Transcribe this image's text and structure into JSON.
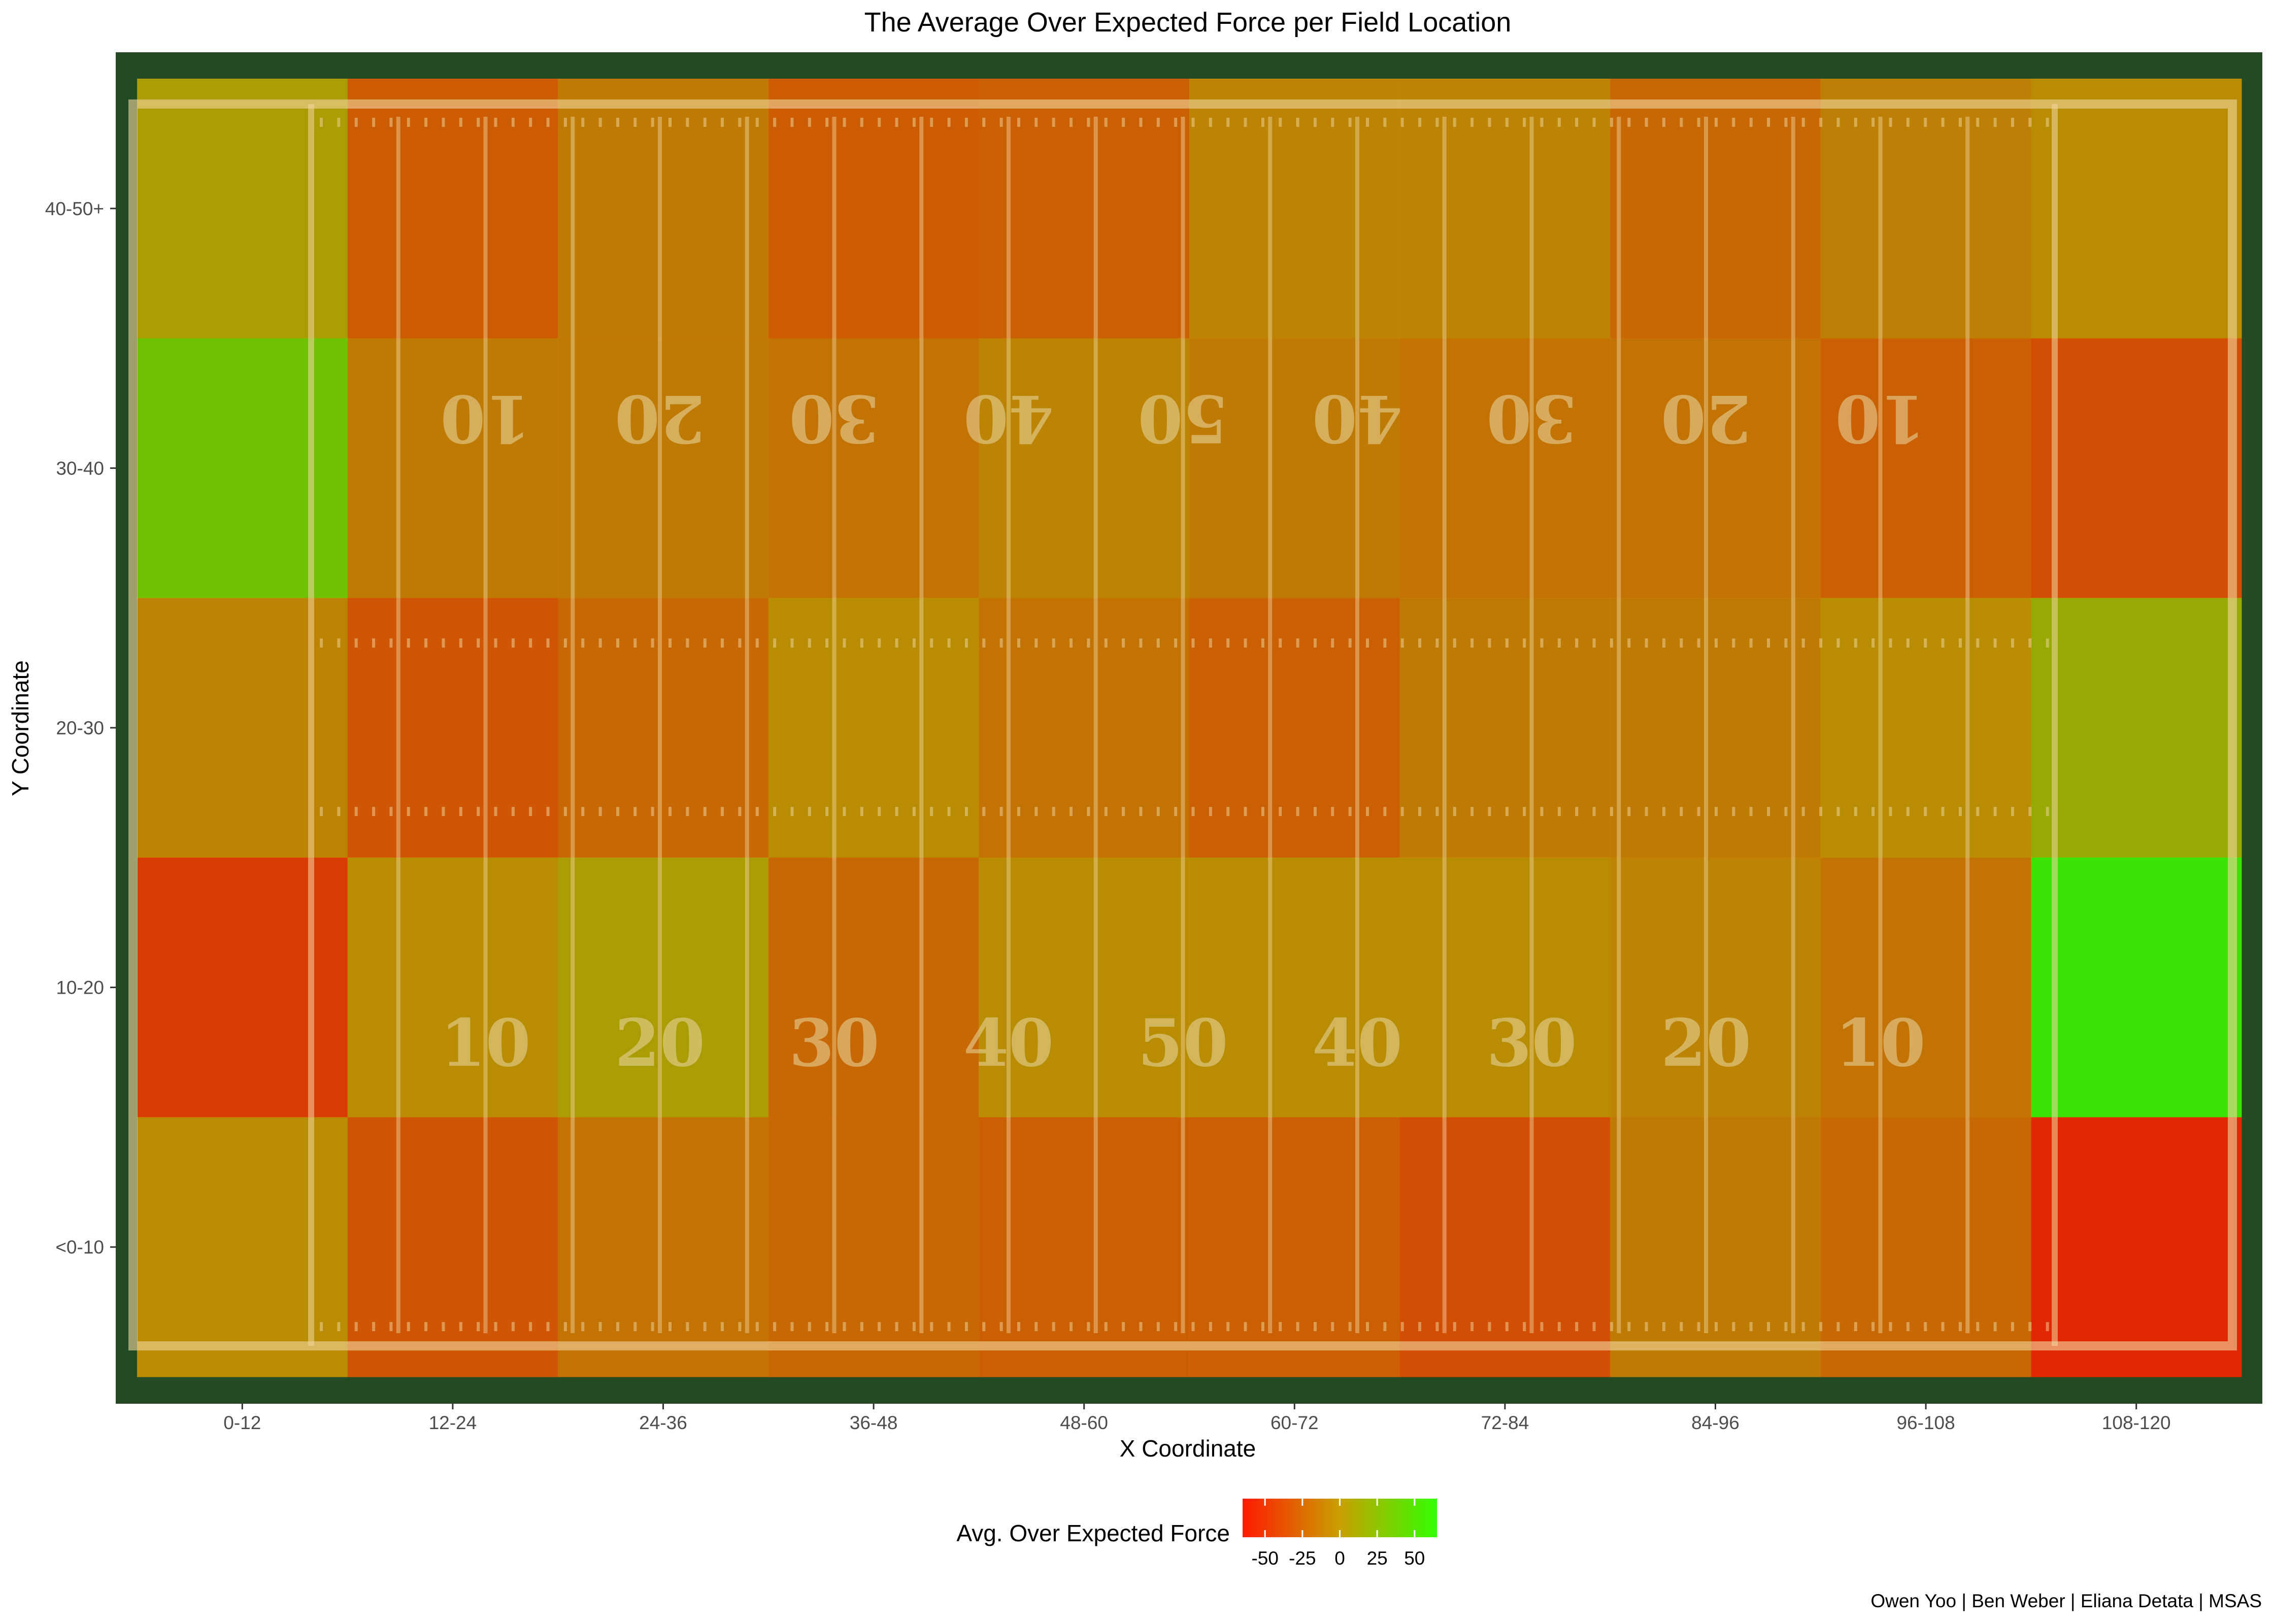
{
  "chart_data": {
    "type": "heatmap",
    "title": "The Average Over Expected Force per Field Location",
    "xlabel": "X Coordinate",
    "ylabel": "Y Coordinate",
    "x_categories": [
      "0-12",
      "12-24",
      "24-36",
      "36-48",
      "48-60",
      "60-72",
      "72-84",
      "84-96",
      "96-108",
      "108-120"
    ],
    "y_categories": [
      "<0-10",
      "10-20",
      "20-30",
      "30-40",
      "40-50+"
    ],
    "values_by_row_top_to_bottom": {
      "40-50+": [
        5,
        -32,
        -15,
        -32,
        -30,
        -10,
        -10,
        -25,
        -12,
        -5
      ],
      "30-40": [
        35,
        -15,
        -15,
        -20,
        -10,
        -15,
        -20,
        -20,
        -30,
        -40
      ],
      "20-30": [
        -10,
        -35,
        -25,
        -5,
        -20,
        -30,
        -15,
        -15,
        -5,
        15
      ],
      "10-20": [
        -50,
        -5,
        5,
        -25,
        -5,
        -5,
        -5,
        -10,
        -20,
        60
      ],
      "<0-10": [
        -5,
        -35,
        -20,
        -25,
        -30,
        -30,
        -40,
        -15,
        -25,
        -60
      ]
    },
    "legend": {
      "title": "Avg. Over Expected Force",
      "ticks": [
        -50,
        -25,
        0,
        25,
        50
      ],
      "range": [
        -65,
        65
      ],
      "colors": [
        "#ff1a00",
        "#c9a000",
        "#33ff00"
      ],
      "position": "bottom"
    },
    "background": "american football field image",
    "field_numbers": {
      "top_row": [
        "10",
        "20",
        "30",
        "40",
        "50",
        "40",
        "30",
        "20",
        "10"
      ],
      "bottom_row": [
        "10",
        "20",
        "30",
        "40",
        "50",
        "40",
        "30",
        "20",
        "10"
      ]
    },
    "grid": false
  },
  "caption": "Owen Yoo | Ben Weber | Eliana Detata | MSAS"
}
